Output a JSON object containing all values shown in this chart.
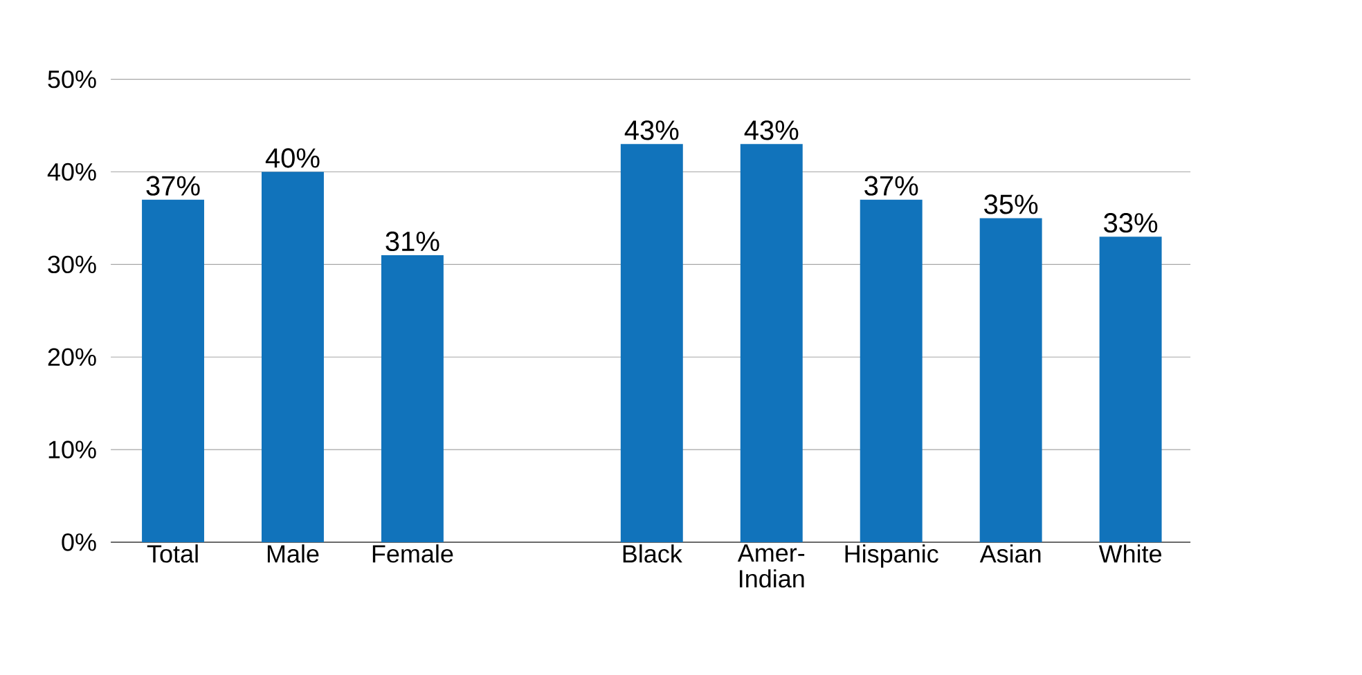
{
  "chart_data": {
    "type": "bar",
    "categories": [
      "Total",
      "Male",
      "Female",
      null,
      "Black",
      "Amer-Indian",
      "Hispanic",
      "Asian",
      "White"
    ],
    "values": [
      37,
      40,
      31,
      null,
      43,
      43,
      37,
      35,
      33
    ],
    "value_labels": [
      "37%",
      "40%",
      "31%",
      null,
      "43%",
      "43%",
      "37%",
      "35%",
      "33%"
    ],
    "color": "#1173bb",
    "ylim": [
      0,
      50
    ],
    "yticks": [
      {
        "value": 0,
        "label": "0%"
      },
      {
        "value": 10,
        "label": "10%"
      },
      {
        "value": 20,
        "label": "20%"
      },
      {
        "value": 30,
        "label": "30%"
      },
      {
        "value": 40,
        "label": "40%"
      },
      {
        "value": 50,
        "label": "50%"
      }
    ],
    "grid": "y"
  }
}
